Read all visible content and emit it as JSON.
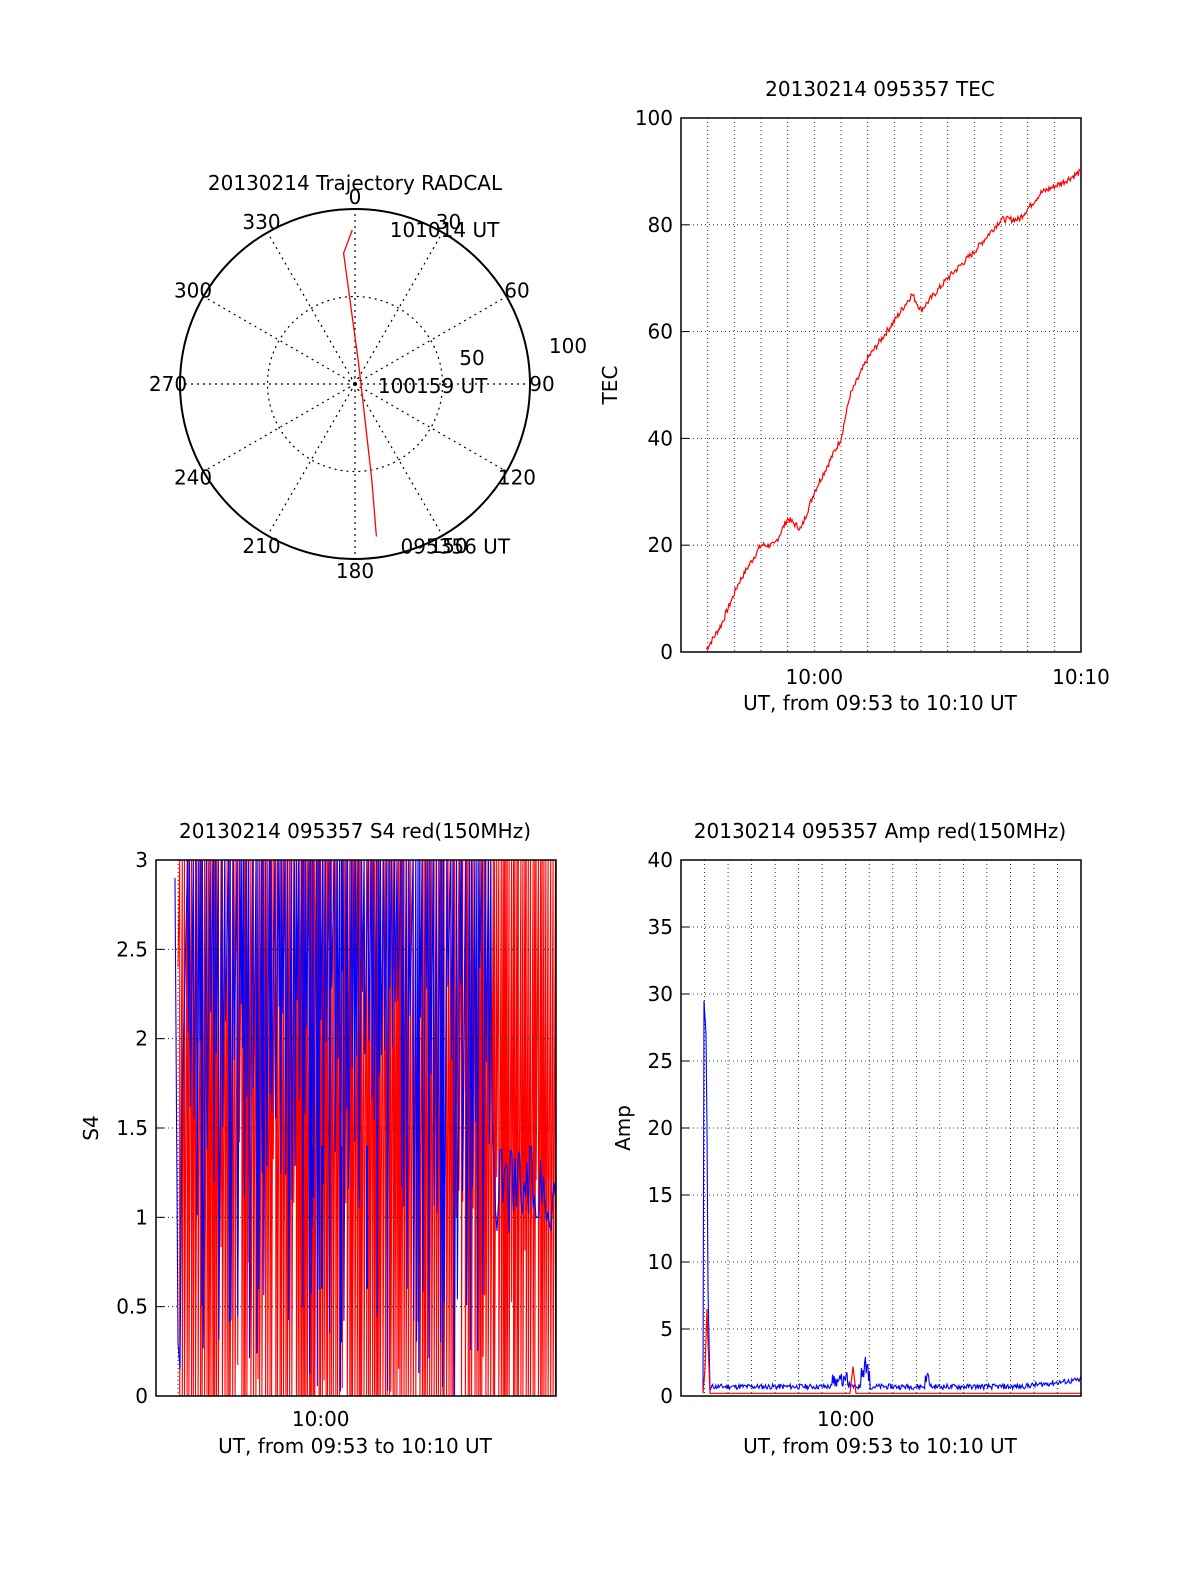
{
  "colors": {
    "red": "#ff0000",
    "blue": "#0000ff",
    "axis": "#000000",
    "grid": "#000000"
  },
  "chart_data": [
    {
      "type": "polar",
      "title": "20130214 Trajectory RADCAL",
      "angle_labels": [
        "0",
        "30",
        "60",
        "90",
        "120",
        "150",
        "180",
        "210",
        "240",
        "270",
        "300",
        "330"
      ],
      "radius_labels": [
        "50",
        "100"
      ],
      "rmax": 100,
      "grid": true,
      "series": [
        {
          "color": "red",
          "points": [
            {
              "az": 359,
              "el": 88
            },
            {
              "az": 355,
              "el": 75
            },
            {
              "az": 10,
              "el": 12
            },
            {
              "az": 170,
              "el": 55
            },
            {
              "az": 172,
              "el": 88
            }
          ]
        }
      ],
      "annotations": [
        {
          "text": "101014 UT",
          "az": 12,
          "el": 90
        },
        {
          "text": "100159 UT",
          "az": 96,
          "el": 12
        },
        {
          "text": "095356 UT",
          "az": 165,
          "el": 96
        }
      ]
    },
    {
      "type": "line",
      "title": "20130214 095357 TEC",
      "xlabel": "UT, from 09:53 to 10:10 UT",
      "ylabel": "TEC",
      "xlim": [
        "09:55:00",
        "10:10:00"
      ],
      "ylim": [
        0,
        100
      ],
      "xticks": [
        "10:00",
        "10:10"
      ],
      "yticks": [
        "0",
        "20",
        "40",
        "60",
        "80",
        "100"
      ],
      "grid": true,
      "series": [
        {
          "color": "red",
          "x": [
            "09:55:57",
            "09:56:30",
            "09:57:10",
            "09:58:00",
            "09:58:30",
            "09:59:00",
            "09:59:30",
            "10:00:00",
            "10:01:00",
            "10:01:20",
            "10:02:00",
            "10:03:00",
            "10:03:40",
            "10:04:00",
            "10:05:00",
            "10:06:00",
            "10:07:00",
            "10:07:40",
            "10:08:30",
            "10:09:20",
            "10:10:00"
          ],
          "y": [
            0.5,
            5,
            13,
            20,
            20,
            25,
            23,
            30,
            40,
            48,
            55,
            62,
            67,
            64,
            70,
            75,
            81,
            81,
            86,
            88,
            90
          ]
        }
      ]
    },
    {
      "type": "line",
      "title": "20130214 095357 S4 red(150MHz)",
      "xlabel": "UT, from 09:53 to 10:10 UT",
      "ylabel": "S4",
      "xlim": [
        "09:53:00",
        "10:10:00"
      ],
      "ylim": [
        0,
        3
      ],
      "xticks": [
        "10:00"
      ],
      "yticks": [
        "0",
        "0.5",
        "1",
        "1.5",
        "2",
        "2.5",
        "3"
      ],
      "grid": true,
      "series": [
        {
          "color": "red",
          "values": "dense noisy series, mostly saturated 0-3"
        },
        {
          "color": "blue",
          "values": "dense noisy series, saturated until ~10:06, then ~0.8-1.5"
        }
      ]
    },
    {
      "type": "line",
      "title": "20130214 095357 Amp red(150MHz)",
      "xlabel": "UT, from 09:53 to 10:10 UT",
      "ylabel": "Amp",
      "xlim": [
        "09:53:00",
        "10:10:00"
      ],
      "ylim": [
        0,
        40
      ],
      "xticks": [
        "10:00"
      ],
      "yticks": [
        "0",
        "5",
        "10",
        "15",
        "20",
        "25",
        "30",
        "35",
        "40"
      ],
      "grid": true,
      "series": [
        {
          "color": "blue",
          "peak": 29.5,
          "baseline": 0.5
        },
        {
          "color": "red",
          "peak": 6.5,
          "baseline": 0.2
        }
      ]
    }
  ]
}
